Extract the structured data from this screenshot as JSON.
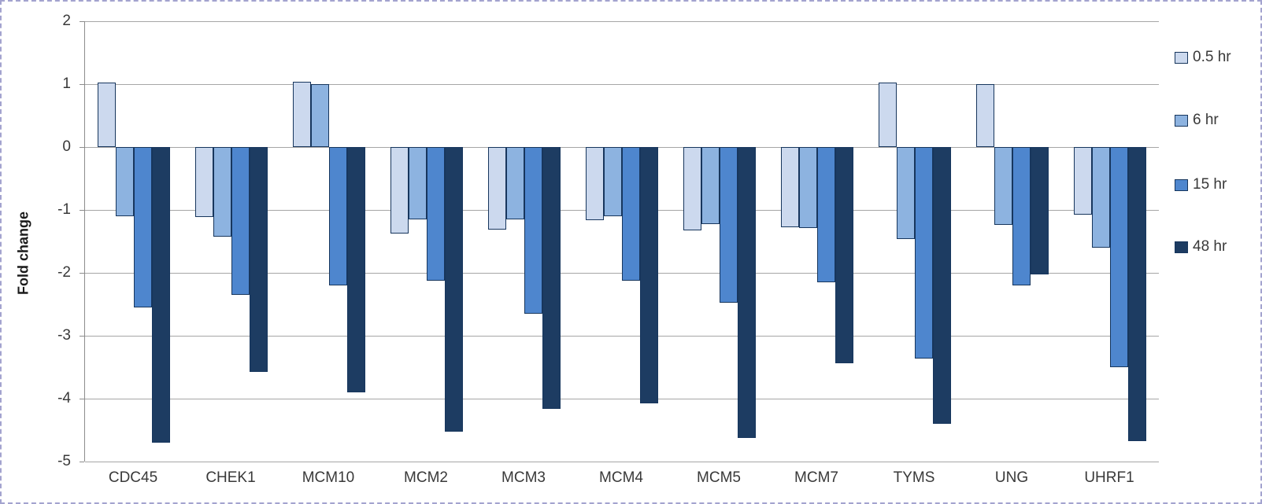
{
  "chart_data": {
    "type": "bar",
    "title": "",
    "ylabel": "Fold change",
    "xlabel": "",
    "ylim": [
      -5,
      2
    ],
    "yticks": [
      2,
      1,
      0,
      -1,
      -2,
      -3,
      -4,
      -5
    ],
    "grid": true,
    "legend_position": "right",
    "categories": [
      "CDC45",
      "CHEK1",
      "MCM10",
      "MCM2",
      "MCM3",
      "MCM4",
      "MCM5",
      "MCM7",
      "TYMS",
      "UNG",
      "UHRF1"
    ],
    "series": [
      {
        "name": "0.5 hr",
        "color": "#ccd9ee",
        "values": [
          1.02,
          -1.11,
          1.04,
          -1.37,
          -1.31,
          -1.16,
          -1.32,
          -1.28,
          1.02,
          1.0,
          -1.08
        ]
      },
      {
        "name": "6 hr",
        "color": "#8db3e0",
        "values": [
          -1.1,
          -1.43,
          1.0,
          -1.15,
          -1.15,
          -1.1,
          -1.23,
          -1.29,
          -1.46,
          -1.24,
          -1.6
        ]
      },
      {
        "name": "15 hr",
        "color": "#4e86ce",
        "values": [
          -2.55,
          -2.35,
          -2.2,
          -2.13,
          -2.65,
          -2.12,
          -2.47,
          -2.15,
          -3.36,
          -2.2,
          -3.5
        ]
      },
      {
        "name": "48 hr",
        "color": "#1d3c62",
        "values": [
          -4.7,
          -3.58,
          -3.9,
          -4.53,
          -4.16,
          -4.08,
          -4.63,
          -3.44,
          -4.4,
          -2.02,
          -4.68
        ]
      }
    ],
    "colors": {
      "bar_border": "#17365d",
      "gridline": "#a6a6a6",
      "axis_line": "#8c8c8c",
      "text": "#393939"
    }
  }
}
